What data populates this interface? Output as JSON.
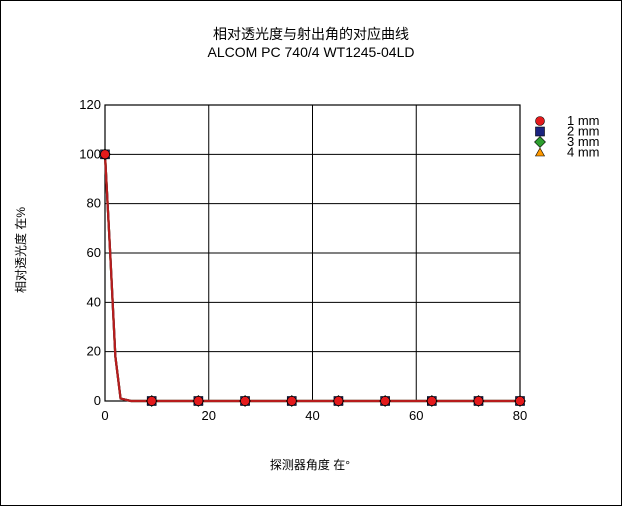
{
  "chart_data": {
    "type": "line",
    "title": "相对透光度与射出角的对应曲线",
    "subtitle": "ALCOM PC 740/4  WT1245-04LD",
    "xlabel": "探测器角度 在°",
    "ylabel": "相对透光度 在%",
    "xlim": [
      0,
      80
    ],
    "ylim": [
      0,
      120
    ],
    "xticks": [
      0,
      20,
      40,
      60,
      80
    ],
    "yticks": [
      0,
      20,
      40,
      60,
      80,
      100,
      120
    ],
    "grid": true,
    "legend_position": "top-right",
    "series": [
      {
        "name": "1 mm",
        "marker": "circle",
        "color": "#e41a1c",
        "points": [
          [
            0,
            100
          ],
          [
            9,
            0
          ],
          [
            18,
            0
          ],
          [
            27,
            0
          ],
          [
            36,
            0
          ],
          [
            45,
            0
          ],
          [
            54,
            0
          ],
          [
            63,
            0
          ],
          [
            72,
            0
          ],
          [
            80,
            0
          ]
        ],
        "curve": [
          [
            0,
            100
          ],
          [
            1,
            60
          ],
          [
            2,
            18
          ],
          [
            3,
            1
          ],
          [
            5,
            0
          ],
          [
            80,
            0
          ]
        ]
      },
      {
        "name": "2 mm",
        "marker": "square",
        "color": "#1a237e",
        "points": [
          [
            0,
            100
          ],
          [
            9,
            0
          ],
          [
            18,
            0
          ],
          [
            27,
            0
          ],
          [
            36,
            0
          ],
          [
            45,
            0
          ],
          [
            54,
            0
          ],
          [
            63,
            0
          ],
          [
            72,
            0
          ],
          [
            80,
            0
          ]
        ],
        "curve": [
          [
            0,
            100
          ],
          [
            1,
            60
          ],
          [
            2,
            18
          ],
          [
            3,
            1
          ],
          [
            5,
            0
          ],
          [
            80,
            0
          ]
        ]
      },
      {
        "name": "3 mm",
        "marker": "diamond",
        "color": "#2e9e2e",
        "points": [
          [
            0,
            100
          ],
          [
            9,
            0
          ],
          [
            18,
            0
          ],
          [
            27,
            0
          ],
          [
            36,
            0
          ],
          [
            45,
            0
          ],
          [
            54,
            0
          ],
          [
            63,
            0
          ],
          [
            72,
            0
          ],
          [
            80,
            0
          ]
        ],
        "curve": [
          [
            0,
            100
          ],
          [
            1,
            60
          ],
          [
            2,
            18
          ],
          [
            3,
            1
          ],
          [
            5,
            0
          ],
          [
            80,
            0
          ]
        ]
      },
      {
        "name": "4 mm",
        "marker": "triangle",
        "color": "#ff9900",
        "points": [
          [
            0,
            100
          ],
          [
            9,
            0
          ],
          [
            18,
            0
          ],
          [
            27,
            0
          ],
          [
            36,
            0
          ],
          [
            45,
            0
          ],
          [
            54,
            0
          ],
          [
            63,
            0
          ],
          [
            72,
            0
          ],
          [
            80,
            0
          ]
        ],
        "curve": [
          [
            0,
            100
          ],
          [
            1,
            60
          ],
          [
            2,
            18
          ],
          [
            3,
            1
          ],
          [
            5,
            0
          ],
          [
            80,
            0
          ]
        ]
      }
    ]
  }
}
